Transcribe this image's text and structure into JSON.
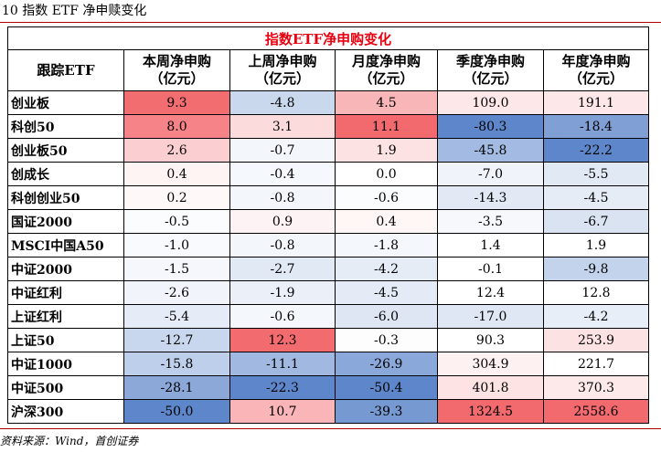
{
  "figure_title": "10 指数 ETF 净申赎变化",
  "table_title": "指数ETF净申购变化",
  "headers": [
    {
      "line1": "跟踪ETF",
      "line2": ""
    },
    {
      "line1": "本周净申购",
      "line2": "（亿元）"
    },
    {
      "line1": "上周净申购",
      "line2": "（亿元）"
    },
    {
      "line1": "月度净申购",
      "line2": "（亿元）"
    },
    {
      "line1": "季度净申购",
      "line2": "（亿元）"
    },
    {
      "line1": "年度净申购",
      "line2": "（亿元）"
    }
  ],
  "rows": [
    {
      "name": "创业板",
      "cells": [
        {
          "text": "9.3",
          "bg": "#f26d70"
        },
        {
          "text": "-4.8",
          "bg": "#cad8ee"
        },
        {
          "text": "4.5",
          "bg": "#f9b6b9"
        },
        {
          "text": "109.0",
          "bg": "#fde7e8"
        },
        {
          "text": "191.1",
          "bg": "#fee7e8"
        }
      ]
    },
    {
      "name": "科创50",
      "cells": [
        {
          "text": "8.0",
          "bg": "#f58387"
        },
        {
          "text": "3.1",
          "bg": "#fcdbdd"
        },
        {
          "text": "11.1",
          "bg": "#f26a6e"
        },
        {
          "text": "-80.3",
          "bg": "#5e87cb"
        },
        {
          "text": "-18.4",
          "bg": "#7f9fd5"
        }
      ]
    },
    {
      "name": "创业板50",
      "cells": [
        {
          "text": "2.6",
          "bg": "#fbcfd1"
        },
        {
          "text": "-0.7",
          "bg": "#f3f6fb"
        },
        {
          "text": "1.9",
          "bg": "#fde2e3"
        },
        {
          "text": "-45.8",
          "bg": "#a3bbe2"
        },
        {
          "text": "-22.2",
          "bg": "#5e87cb"
        }
      ]
    },
    {
      "name": "创成长",
      "cells": [
        {
          "text": "0.4",
          "bg": "#fef4f4"
        },
        {
          "text": "-0.4",
          "bg": "#f5f8fc"
        },
        {
          "text": "0.0",
          "bg": "#ffffff"
        },
        {
          "text": "-7.0",
          "bg": "#f0f4fa"
        },
        {
          "text": "-5.5",
          "bg": "#e1e9f5"
        }
      ]
    },
    {
      "name": "科创创业50",
      "cells": [
        {
          "text": "0.2",
          "bg": "#fff8f8"
        },
        {
          "text": "-0.8",
          "bg": "#f3f6fb"
        },
        {
          "text": "-0.6",
          "bg": "#fbfcfe"
        },
        {
          "text": "-14.3",
          "bg": "#e2e9f5"
        },
        {
          "text": "-4.5",
          "bg": "#e6ecf6"
        }
      ]
    },
    {
      "name": "国证2000",
      "cells": [
        {
          "text": "-0.5",
          "bg": "#fbfcfe"
        },
        {
          "text": "0.9",
          "bg": "#fef3f4"
        },
        {
          "text": "0.4",
          "bg": "#fff6f6"
        },
        {
          "text": "-3.5",
          "bg": "#f6f8fc"
        },
        {
          "text": "-6.7",
          "bg": "#dae3f2"
        }
      ]
    },
    {
      "name": "MSCI中国A50",
      "cells": [
        {
          "text": "-1.0",
          "bg": "#f8fafd"
        },
        {
          "text": "-0.8",
          "bg": "#f3f6fb"
        },
        {
          "text": "-1.8",
          "bg": "#f4f7fb"
        },
        {
          "text": "1.4",
          "bg": "#ffffff"
        },
        {
          "text": "1.9",
          "bg": "#ffffff"
        }
      ]
    },
    {
      "name": "中证2000",
      "cells": [
        {
          "text": "-1.5",
          "bg": "#f5f7fc"
        },
        {
          "text": "-2.7",
          "bg": "#e1e9f5"
        },
        {
          "text": "-4.2",
          "bg": "#e6ecf6"
        },
        {
          "text": "-0.1",
          "bg": "#ffffff"
        },
        {
          "text": "-9.8",
          "bg": "#c4d3ec"
        }
      ]
    },
    {
      "name": "中证红利",
      "cells": [
        {
          "text": "-2.6",
          "bg": "#f1f5fb"
        },
        {
          "text": "-1.9",
          "bg": "#ebf0f8"
        },
        {
          "text": "-4.5",
          "bg": "#e5ebf6"
        },
        {
          "text": "12.4",
          "bg": "#ffffff"
        },
        {
          "text": "12.8",
          "bg": "#ffffff"
        }
      ]
    },
    {
      "name": "上证红利",
      "cells": [
        {
          "text": "-5.4",
          "bg": "#e6ecf7"
        },
        {
          "text": "-0.6",
          "bg": "#f4f7fb"
        },
        {
          "text": "-6.0",
          "bg": "#dee6f4"
        },
        {
          "text": "-17.0",
          "bg": "#dfe7f4"
        },
        {
          "text": "-4.2",
          "bg": "#e8eef7"
        }
      ]
    },
    {
      "name": "上证50",
      "cells": [
        {
          "text": "-12.7",
          "bg": "#c9d7ee"
        },
        {
          "text": "12.3",
          "bg": "#f26b6f"
        },
        {
          "text": "-0.3",
          "bg": "#fdfdfe"
        },
        {
          "text": "90.3",
          "bg": "#ffffff"
        },
        {
          "text": "253.9",
          "bg": "#fde2e3"
        }
      ]
    },
    {
      "name": "中证1000",
      "cells": [
        {
          "text": "-15.8",
          "bg": "#bdcfea"
        },
        {
          "text": "-11.1",
          "bg": "#a1b9e1"
        },
        {
          "text": "-26.9",
          "bg": "#8aa8d9"
        },
        {
          "text": "304.9",
          "bg": "#fef1f2"
        },
        {
          "text": "221.7",
          "bg": "#ffffff"
        }
      ]
    },
    {
      "name": "中证500",
      "cells": [
        {
          "text": "-28.1",
          "bg": "#8ba8d9"
        },
        {
          "text": "-22.3",
          "bg": "#5e87cb"
        },
        {
          "text": "-50.4",
          "bg": "#5e87cb"
        },
        {
          "text": "401.8",
          "bg": "#fde3e4"
        },
        {
          "text": "370.3",
          "bg": "#fee9ea"
        }
      ]
    },
    {
      "name": "沪深300",
      "cells": [
        {
          "text": "-50.0",
          "bg": "#5e87cb"
        },
        {
          "text": "10.7",
          "bg": "#fab5b8"
        },
        {
          "text": "-39.3",
          "bg": "#7799d2"
        },
        {
          "text": "1324.5",
          "bg": "#f26a6e"
        },
        {
          "text": "2558.6",
          "bg": "#f26a6e"
        }
      ]
    }
  ],
  "source": "资料来源：Wind，首创证券"
}
